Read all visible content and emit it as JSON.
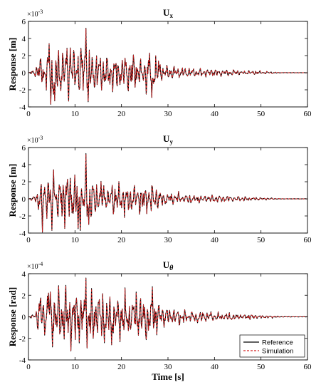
{
  "chart_data": [
    {
      "type": "line",
      "title": "U",
      "title_subscript": "x",
      "ylabel": "Response [m]",
      "xlabel": "",
      "exponent_base": "×10",
      "exponent_power": "-3",
      "xlim": [
        0,
        60
      ],
      "ylim": [
        -4,
        6
      ],
      "xticks": [
        0,
        10,
        20,
        30,
        40,
        50,
        60
      ],
      "yticks": [
        -4,
        -2,
        0,
        2,
        4,
        6
      ],
      "grid": false,
      "signal": {
        "duration": 60,
        "step": 0.12,
        "envelope": [
          [
            0,
            0
          ],
          [
            1.5,
            0.4
          ],
          [
            2.5,
            2.0
          ],
          [
            6,
            2.6
          ],
          [
            12,
            3.0
          ],
          [
            13.5,
            2.3
          ],
          [
            20,
            1.8
          ],
          [
            27,
            1.9
          ],
          [
            29,
            0.7
          ],
          [
            35,
            0.45
          ],
          [
            45,
            0.25
          ],
          [
            52,
            0.12
          ],
          [
            54,
            0.02
          ],
          [
            60,
            0.01
          ]
        ],
        "peaks": [
          {
            "t": 12.3,
            "v": 5.2
          },
          {
            "t": 4.8,
            "v": -3.7
          },
          {
            "t": 5.6,
            "v": -3.3
          },
          {
            "t": 12.8,
            "v": -3.4
          },
          {
            "t": 4.4,
            "v": 3.4
          },
          {
            "t": 9.0,
            "v": 2.9
          },
          {
            "t": 26.5,
            "v": -2.9
          },
          {
            "t": 26.0,
            "v": 2.3
          }
        ]
      },
      "series": [
        {
          "name": "Reference",
          "color": "#000000",
          "dash": "solid"
        },
        {
          "name": "Simulation",
          "color": "#d42020",
          "dash": "dashed"
        }
      ]
    },
    {
      "type": "line",
      "title": "U",
      "title_subscript": "y",
      "ylabel": "Response [m]",
      "xlabel": "",
      "exponent_base": "×10",
      "exponent_power": "-3",
      "xlim": [
        0,
        60
      ],
      "ylim": [
        -4,
        6
      ],
      "xticks": [
        0,
        10,
        20,
        30,
        40,
        50,
        60
      ],
      "yticks": [
        -4,
        -2,
        0,
        2,
        4,
        6
      ],
      "grid": false,
      "signal": {
        "duration": 60,
        "step": 0.12,
        "envelope": [
          [
            0,
            0
          ],
          [
            1.5,
            0.4
          ],
          [
            2.5,
            2.2
          ],
          [
            6,
            2.6
          ],
          [
            12,
            2.8
          ],
          [
            13.5,
            2.0
          ],
          [
            20,
            1.5
          ],
          [
            27,
            1.5
          ],
          [
            29,
            0.7
          ],
          [
            35,
            0.45
          ],
          [
            45,
            0.25
          ],
          [
            52,
            0.12
          ],
          [
            54,
            0.02
          ],
          [
            60,
            0.01
          ]
        ],
        "peaks": [
          {
            "t": 12.3,
            "v": 5.3
          },
          {
            "t": 3.0,
            "v": -3.9
          },
          {
            "t": 5.0,
            "v": -3.7
          },
          {
            "t": 10.7,
            "v": -3.5
          },
          {
            "t": 12.9,
            "v": -3.0
          },
          {
            "t": 5.4,
            "v": 3.4
          },
          {
            "t": 10.0,
            "v": 2.8
          }
        ]
      },
      "series": [
        {
          "name": "Reference",
          "color": "#000000",
          "dash": "solid"
        },
        {
          "name": "Simulation",
          "color": "#d42020",
          "dash": "dashed"
        }
      ]
    },
    {
      "type": "line",
      "title": "U",
      "title_subscript": "θ",
      "ylabel": "Response [rad]",
      "xlabel": "Time [s]",
      "exponent_base": "×10",
      "exponent_power": "-4",
      "xlim": [
        0,
        60
      ],
      "ylim": [
        -4,
        4
      ],
      "xticks": [
        0,
        10,
        20,
        30,
        40,
        50,
        60
      ],
      "yticks": [
        -4,
        -2,
        0,
        2,
        4
      ],
      "grid": false,
      "legend": "bottom-right",
      "signal": {
        "duration": 60,
        "step": 0.12,
        "envelope": [
          [
            0,
            0
          ],
          [
            1.5,
            0.4
          ],
          [
            2.5,
            2.1
          ],
          [
            8,
            2.2
          ],
          [
            12,
            2.4
          ],
          [
            14,
            2.0
          ],
          [
            20,
            1.8
          ],
          [
            27,
            1.9
          ],
          [
            29,
            0.8
          ],
          [
            35,
            0.5
          ],
          [
            45,
            0.25
          ],
          [
            52,
            0.12
          ],
          [
            54,
            0.02
          ],
          [
            60,
            0.01
          ]
        ],
        "peaks": [
          {
            "t": 12.3,
            "v": 3.6
          },
          {
            "t": 26.6,
            "v": 2.8
          },
          {
            "t": 12.6,
            "v": -2.9
          },
          {
            "t": 5.2,
            "v": -2.8
          },
          {
            "t": 17.9,
            "v": -2.6
          },
          {
            "t": 4.3,
            "v": 2.2
          }
        ]
      },
      "series": [
        {
          "name": "Reference",
          "color": "#000000",
          "dash": "solid"
        },
        {
          "name": "Simulation",
          "color": "#d42020",
          "dash": "dashed"
        }
      ]
    }
  ]
}
